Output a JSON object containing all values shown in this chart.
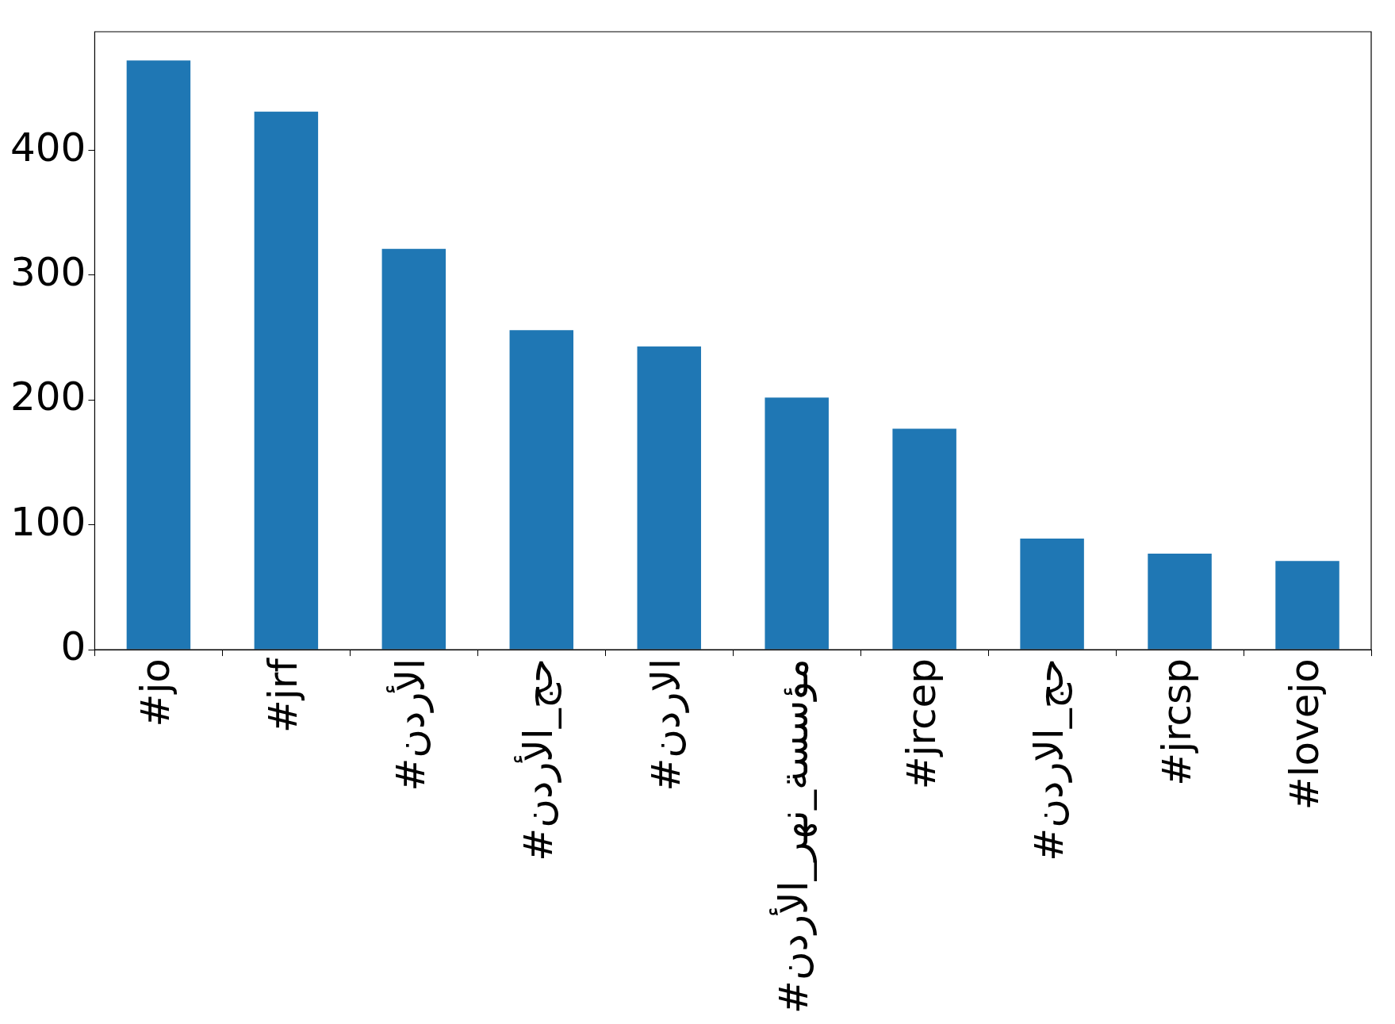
{
  "chart_data": {
    "type": "bar",
    "categories": [
      "#jo",
      "#jrf",
      "#الأردن",
      "#حج_الأردن",
      "#الاردن",
      "#مؤسسة_نهر_الأردن",
      "#jrcep",
      "#حج_الاردن",
      "#jrcsp",
      "#lovejo"
    ],
    "values": [
      472,
      431,
      321,
      256,
      243,
      202,
      177,
      89,
      77,
      71
    ],
    "color": "#1f77b4",
    "ylim": [
      0,
      495
    ],
    "yticks": [
      0,
      100,
      200,
      300,
      400
    ]
  }
}
